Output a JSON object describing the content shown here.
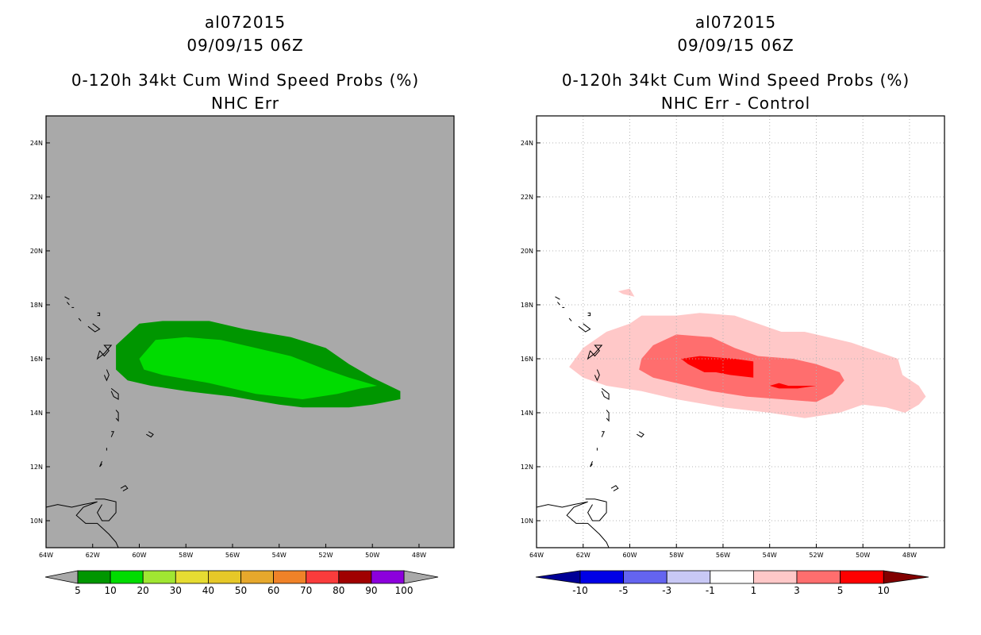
{
  "chart_data": [
    {
      "type": "heatmap",
      "storm_id": "al072015",
      "datetime": "09/09/15 06Z",
      "title": "0-120h 34kt Cum Wind Speed Probs (%)",
      "subtitle": "NHC Err",
      "x_ticks": [
        "64W",
        "62W",
        "60W",
        "58W",
        "56W",
        "54W",
        "52W",
        "50W",
        "48W"
      ],
      "y_ticks": [
        "10N",
        "12N",
        "14N",
        "16N",
        "18N",
        "20N",
        "22N",
        "24N"
      ],
      "lon_range": [
        -64,
        -46.5
      ],
      "lat_range": [
        9,
        25
      ],
      "grid": false,
      "background_color": "#a9a9a9",
      "colorbar": {
        "labels": [
          "5",
          "10",
          "20",
          "30",
          "40",
          "50",
          "60",
          "70",
          "80",
          "90",
          "100"
        ],
        "colors": [
          "#009600",
          "#00dc00",
          "#a0e632",
          "#e6dc32",
          "#e6c828",
          "#e6a82c",
          "#f08228",
          "#fa3c3c",
          "#a00000",
          "#8c00dc"
        ],
        "end_colors": [
          "#a9a9a9",
          "#a9a9a9"
        ]
      },
      "contours": [
        {
          "level": "5-10",
          "color": "#009600",
          "points": [
            [
              -61.0,
              16.5
            ],
            [
              -60.0,
              17.3
            ],
            [
              -59.0,
              17.4
            ],
            [
              -57.0,
              17.4
            ],
            [
              -55.5,
              17.1
            ],
            [
              -53.5,
              16.8
            ],
            [
              -52.0,
              16.4
            ],
            [
              -51.0,
              15.8
            ],
            [
              -50.0,
              15.3
            ],
            [
              -48.8,
              14.8
            ],
            [
              -48.8,
              14.5
            ],
            [
              -50.0,
              14.3
            ],
            [
              -51.0,
              14.2
            ],
            [
              -52.0,
              14.2
            ],
            [
              -53.0,
              14.2
            ],
            [
              -54.0,
              14.3
            ],
            [
              -56.0,
              14.6
            ],
            [
              -58.0,
              14.8
            ],
            [
              -59.5,
              15.0
            ],
            [
              -60.5,
              15.2
            ],
            [
              -61.0,
              15.6
            ]
          ]
        },
        {
          "level": "10-20",
          "color": "#00dc00",
          "points": [
            [
              -60.0,
              16.0
            ],
            [
              -59.3,
              16.7
            ],
            [
              -58.0,
              16.8
            ],
            [
              -56.5,
              16.7
            ],
            [
              -55.0,
              16.4
            ],
            [
              -53.5,
              16.1
            ],
            [
              -52.0,
              15.6
            ],
            [
              -51.0,
              15.3
            ],
            [
              -49.8,
              15.0
            ],
            [
              -50.5,
              14.9
            ],
            [
              -51.5,
              14.7
            ],
            [
              -53.0,
              14.5
            ],
            [
              -55.0,
              14.7
            ],
            [
              -57.0,
              15.1
            ],
            [
              -59.0,
              15.4
            ],
            [
              -59.8,
              15.6
            ]
          ]
        }
      ]
    },
    {
      "type": "heatmap",
      "storm_id": "al072015",
      "datetime": "09/09/15 06Z",
      "title": "0-120h 34kt Cum Wind Speed Probs (%)",
      "subtitle": "NHC Err - Control",
      "x_ticks": [
        "64W",
        "62W",
        "60W",
        "58W",
        "56W",
        "54W",
        "52W",
        "50W",
        "48W"
      ],
      "y_ticks": [
        "10N",
        "12N",
        "14N",
        "16N",
        "18N",
        "20N",
        "22N",
        "24N"
      ],
      "lon_range": [
        -64,
        -46.5
      ],
      "lat_range": [
        9,
        25
      ],
      "grid": true,
      "background_color": "#ffffff",
      "colorbar": {
        "labels": [
          "-10",
          "-5",
          "-3",
          "-1",
          "1",
          "3",
          "5",
          "10"
        ],
        "colors": [
          "#0000e6",
          "#6464f0",
          "#c8c8f5",
          "#ffffff",
          "#ffc8c8",
          "#ff6e6e",
          "#ff0000"
        ],
        "end_colors": [
          "#000096",
          "#820000"
        ]
      },
      "contours": [
        {
          "level": "1-3",
          "color": "#ffc8c8",
          "points": [
            [
              -62.6,
              15.7
            ],
            [
              -62.0,
              16.4
            ],
            [
              -61.0,
              17.0
            ],
            [
              -60.0,
              17.3
            ],
            [
              -59.5,
              17.6
            ],
            [
              -58.0,
              17.6
            ],
            [
              -57.0,
              17.7
            ],
            [
              -55.5,
              17.6
            ],
            [
              -54.5,
              17.3
            ],
            [
              -53.5,
              17.0
            ],
            [
              -52.5,
              17.0
            ],
            [
              -51.5,
              16.8
            ],
            [
              -50.5,
              16.6
            ],
            [
              -49.5,
              16.3
            ],
            [
              -48.5,
              16.0
            ],
            [
              -48.3,
              15.4
            ],
            [
              -47.6,
              15.0
            ],
            [
              -47.3,
              14.6
            ],
            [
              -47.6,
              14.3
            ],
            [
              -48.2,
              14.0
            ],
            [
              -49.0,
              14.2
            ],
            [
              -50.0,
              14.3
            ],
            [
              -51.0,
              14.0
            ],
            [
              -52.5,
              13.8
            ],
            [
              -54.0,
              14.0
            ],
            [
              -56.0,
              14.2
            ],
            [
              -58.0,
              14.5
            ],
            [
              -59.5,
              14.8
            ],
            [
              -61.0,
              15.0
            ],
            [
              -62.0,
              15.3
            ]
          ]
        },
        {
          "level": "1-3 (isolated)",
          "color": "#ffc8c8",
          "points": [
            [
              -60.5,
              18.5
            ],
            [
              -60.0,
              18.6
            ],
            [
              -59.8,
              18.3
            ],
            [
              -60.3,
              18.4
            ]
          ]
        },
        {
          "level": "3-5",
          "color": "#ff6e6e",
          "points": [
            [
              -59.5,
              16.0
            ],
            [
              -59.0,
              16.5
            ],
            [
              -58.0,
              16.9
            ],
            [
              -56.5,
              16.8
            ],
            [
              -55.5,
              16.4
            ],
            [
              -54.5,
              16.1
            ],
            [
              -53.0,
              16.0
            ],
            [
              -52.0,
              15.8
            ],
            [
              -51.0,
              15.5
            ],
            [
              -50.8,
              15.2
            ],
            [
              -51.3,
              14.7
            ],
            [
              -52.0,
              14.4
            ],
            [
              -53.5,
              14.5
            ],
            [
              -55.0,
              14.6
            ],
            [
              -56.5,
              14.8
            ],
            [
              -58.0,
              15.1
            ],
            [
              -59.0,
              15.3
            ],
            [
              -59.6,
              15.6
            ]
          ]
        },
        {
          "level": "5-10",
          "color": "#ff0000",
          "points": [
            [
              -57.8,
              16.0
            ],
            [
              -57.0,
              16.1
            ],
            [
              -55.5,
              16.0
            ],
            [
              -54.7,
              15.9
            ],
            [
              -54.7,
              15.3
            ],
            [
              -55.7,
              15.4
            ],
            [
              -56.3,
              15.5
            ],
            [
              -56.8,
              15.5
            ],
            [
              -57.5,
              15.8
            ]
          ]
        },
        {
          "level": "5-10 (small)",
          "color": "#ff0000",
          "points": [
            [
              -54.0,
              15.0
            ],
            [
              -53.6,
              15.1
            ],
            [
              -53.2,
              15.0
            ],
            [
              -52.5,
              15.0
            ],
            [
              -52.0,
              15.0
            ],
            [
              -52.8,
              14.9
            ],
            [
              -53.6,
              14.9
            ]
          ]
        }
      ]
    }
  ],
  "coastlines": [
    [
      [
        -64.0,
        10.5
      ],
      [
        -63.5,
        10.6
      ],
      [
        -62.9,
        10.5
      ],
      [
        -62.4,
        10.6
      ],
      [
        -61.8,
        10.7
      ],
      [
        -62.4,
        10.5
      ],
      [
        -62.7,
        10.2
      ],
      [
        -62.3,
        9.9
      ],
      [
        -61.8,
        9.9
      ],
      [
        -61.3,
        9.5
      ],
      [
        -61.0,
        9.2
      ],
      [
        -60.9,
        9.0
      ]
    ],
    [
      [
        -61.9,
        10.8
      ],
      [
        -61.5,
        10.8
      ],
      [
        -61.0,
        10.7
      ],
      [
        -61.0,
        10.3
      ],
      [
        -61.3,
        10.0
      ],
      [
        -61.6,
        10.0
      ],
      [
        -61.8,
        10.3
      ],
      [
        -61.6,
        10.6
      ]
    ],
    [
      [
        -60.8,
        11.2
      ],
      [
        -60.6,
        11.3
      ],
      [
        -60.5,
        11.2
      ],
      [
        -60.7,
        11.1
      ]
    ],
    [
      [
        -61.6,
        12.2
      ],
      [
        -61.7,
        12.0
      ],
      [
        -61.6,
        12.1
      ]
    ],
    [
      [
        -61.4,
        12.7
      ],
      [
        -61.4,
        12.6
      ]
    ],
    [
      [
        -61.2,
        13.3
      ],
      [
        -61.1,
        13.3
      ],
      [
        -61.2,
        13.1
      ]
    ],
    [
      [
        -59.6,
        13.3
      ],
      [
        -59.4,
        13.2
      ],
      [
        -59.5,
        13.1
      ],
      [
        -59.7,
        13.2
      ]
    ],
    [
      [
        -61.0,
        14.1
      ],
      [
        -60.9,
        14.0
      ],
      [
        -60.9,
        13.7
      ],
      [
        -61.0,
        13.8
      ]
    ],
    [
      [
        -61.2,
        14.9
      ],
      [
        -60.9,
        14.7
      ],
      [
        -60.9,
        14.5
      ],
      [
        -61.1,
        14.6
      ],
      [
        -61.2,
        14.8
      ]
    ],
    [
      [
        -61.4,
        15.6
      ],
      [
        -61.3,
        15.4
      ],
      [
        -61.4,
        15.2
      ],
      [
        -61.5,
        15.4
      ]
    ],
    [
      [
        -61.7,
        16.3
      ],
      [
        -61.5,
        16.1
      ],
      [
        -61.3,
        16.3
      ],
      [
        -61.5,
        16.5
      ],
      [
        -61.2,
        16.5
      ],
      [
        -61.5,
        16.2
      ],
      [
        -61.8,
        16.0
      ],
      [
        -61.7,
        16.3
      ]
    ],
    [
      [
        -62.2,
        17.2
      ],
      [
        -61.9,
        17.0
      ],
      [
        -61.7,
        17.1
      ],
      [
        -62.0,
        17.3
      ]
    ],
    [
      [
        -61.8,
        17.6
      ],
      [
        -61.7,
        17.6
      ],
      [
        -61.7,
        17.7
      ],
      [
        -61.8,
        17.7
      ]
    ],
    [
      [
        -62.9,
        17.9
      ],
      [
        -62.8,
        17.9
      ]
    ],
    [
      [
        -63.1,
        18.1
      ],
      [
        -63.0,
        18.0
      ]
    ],
    [
      [
        -63.2,
        18.3
      ],
      [
        -63.0,
        18.2
      ]
    ],
    [
      [
        -62.6,
        17.5
      ],
      [
        -62.5,
        17.4
      ]
    ]
  ]
}
